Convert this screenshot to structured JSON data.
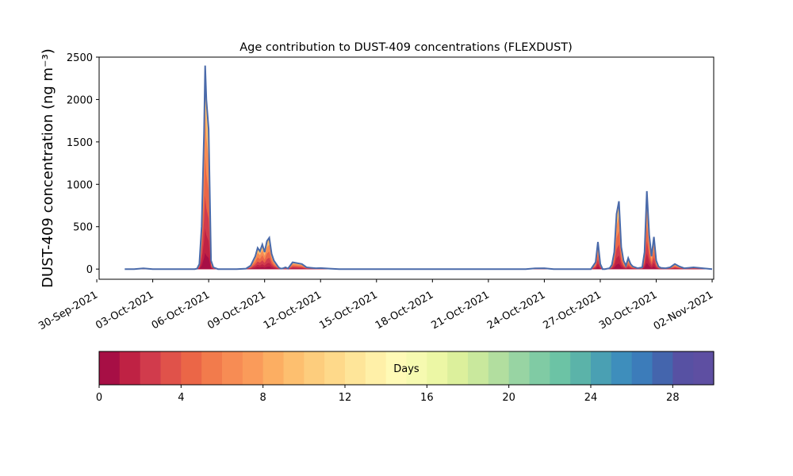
{
  "chart_data": {
    "type": "area",
    "title": "Age contribution to DUST-409 concentrations (FLEXDUST)",
    "xlabel": "",
    "ylabel": "DUST-409 concentration (ng m⁻³)",
    "ylim": [
      -120,
      2500
    ],
    "xlim": [
      "2021-09-30T03:00",
      "2021-11-02T02:00"
    ],
    "y_ticks": [
      0,
      500,
      1000,
      1500,
      2000,
      2500
    ],
    "x_ticks": [
      "2021-09-30",
      "2021-10-03",
      "2021-10-06",
      "2021-10-09",
      "2021-10-12",
      "2021-10-15",
      "2021-10-18",
      "2021-10-21",
      "2021-10-24",
      "2021-10-27",
      "2021-10-30",
      "2021-11-02"
    ],
    "x_tick_labels": [
      "30-Sep-2021",
      "03-Oct-2021",
      "06-Oct-2021",
      "09-Oct-2021",
      "12-Oct-2021",
      "15-Oct-2021",
      "18-Oct-2021",
      "21-Oct-2021",
      "24-Oct-2021",
      "27-Oct-2021",
      "30-Oct-2021",
      "02-Nov-2021"
    ],
    "grid": false,
    "series_description": "stacked by age class",
    "total_series": {
      "x": [
        "2021-10-01T12:00",
        "2021-10-02T00:00",
        "2021-10-02T12:00",
        "2021-10-03T00:00",
        "2021-10-04T00:00",
        "2021-10-05T00:00",
        "2021-10-05T06:00",
        "2021-10-05T09:00",
        "2021-10-05T12:00",
        "2021-10-05T15:00",
        "2021-10-05T18:00",
        "2021-10-05T19:30",
        "2021-10-05T21:00",
        "2021-10-06T00:00",
        "2021-10-06T03:00",
        "2021-10-06T06:00",
        "2021-10-06T12:00",
        "2021-10-07T00:00",
        "2021-10-07T12:00",
        "2021-10-08T00:00",
        "2021-10-08T06:00",
        "2021-10-08T12:00",
        "2021-10-08T15:00",
        "2021-10-08T18:00",
        "2021-10-08T21:00",
        "2021-10-09T00:00",
        "2021-10-09T03:00",
        "2021-10-09T06:00",
        "2021-10-09T09:00",
        "2021-10-09T12:00",
        "2021-10-09T15:00",
        "2021-10-09T18:00",
        "2021-10-09T21:00",
        "2021-10-10T00:00",
        "2021-10-10T03:00",
        "2021-10-10T06:00",
        "2021-10-10T12:00",
        "2021-10-11T00:00",
        "2021-10-11T06:00",
        "2021-10-11T12:00",
        "2021-10-11T18:00",
        "2021-10-12T00:00",
        "2021-10-12T06:00",
        "2021-10-12T12:00",
        "2021-10-13T00:00",
        "2021-10-13T12:00",
        "2021-10-14T00:00",
        "2021-10-14T12:00",
        "2021-10-15T00:00",
        "2021-10-18T00:00",
        "2021-10-21T00:00",
        "2021-10-23T00:00",
        "2021-10-23T12:00",
        "2021-10-24T00:00",
        "2021-10-24T12:00",
        "2021-10-25T00:00",
        "2021-10-25T12:00",
        "2021-10-25T18:00",
        "2021-10-25T21:00",
        "2021-10-26T00:00",
        "2021-10-26T03:00",
        "2021-10-26T06:00",
        "2021-10-26T12:00",
        "2021-10-26T18:00",
        "2021-10-26T21:00",
        "2021-10-27T00:00",
        "2021-10-27T03:00",
        "2021-10-27T06:00",
        "2021-10-27T12:00",
        "2021-10-27T15:00",
        "2021-10-27T18:00",
        "2021-10-27T21:00",
        "2021-10-28T00:00",
        "2021-10-28T03:00",
        "2021-10-28T06:00",
        "2021-10-28T09:00",
        "2021-10-28T12:00",
        "2021-10-28T15:00",
        "2021-10-28T18:00",
        "2021-10-29T00:00",
        "2021-10-29T06:00",
        "2021-10-29T09:00",
        "2021-10-29T12:00",
        "2021-10-29T15:00",
        "2021-10-29T18:00",
        "2021-10-29T21:00",
        "2021-10-30T00:00",
        "2021-10-30T03:00",
        "2021-10-30T06:00",
        "2021-10-30T12:00",
        "2021-10-30T18:00",
        "2021-10-31T00:00",
        "2021-10-31T06:00",
        "2021-10-31T12:00",
        "2021-10-31T18:00",
        "2021-11-01T00:00",
        "2021-11-01T12:00",
        "2021-11-02T00:00"
      ],
      "values": [
        0,
        0,
        8,
        0,
        0,
        0,
        0,
        5,
        60,
        500,
        1600,
        2400,
        2000,
        1650,
        100,
        20,
        0,
        0,
        0,
        5,
        40,
        150,
        250,
        210,
        290,
        200,
        330,
        370,
        180,
        100,
        60,
        20,
        5,
        10,
        20,
        5,
        80,
        60,
        20,
        15,
        10,
        12,
        8,
        5,
        0,
        0,
        0,
        0,
        0,
        0,
        0,
        0,
        8,
        10,
        0,
        0,
        0,
        0,
        0,
        0,
        0,
        0,
        0,
        80,
        320,
        60,
        0,
        0,
        10,
        50,
        200,
        650,
        800,
        260,
        100,
        40,
        130,
        60,
        30,
        10,
        20,
        200,
        920,
        400,
        150,
        380,
        100,
        30,
        15,
        10,
        20,
        60,
        30,
        10,
        15,
        20,
        10,
        0
      ]
    },
    "colorbar": {
      "label": "Days",
      "min": 0,
      "max": 30,
      "ticks": [
        0,
        4,
        8,
        12,
        16,
        20,
        24,
        28
      ],
      "colors": [
        "#a70f45",
        "#bf2244",
        "#d13b4c",
        "#e0524a",
        "#eb6647",
        "#f27b4c",
        "#f78c54",
        "#fa9b5a",
        "#fcae62",
        "#fdbf6f",
        "#fdcd7d",
        "#fed98a",
        "#fee599",
        "#fff0a8",
        "#fffab6",
        "#f6fab0",
        "#ecf7a5",
        "#dcf09c",
        "#c9e89d",
        "#b2de9f",
        "#98d4a3",
        "#80cba4",
        "#6cc3a5",
        "#5bb3a9",
        "#4aa0b3",
        "#3e8ebc",
        "#3c7cba",
        "#4465ad",
        "#5751a3",
        "#5e4fa2"
      ]
    },
    "colors": {
      "outline": "#4a6aaa",
      "young": "#a70f45"
    }
  }
}
